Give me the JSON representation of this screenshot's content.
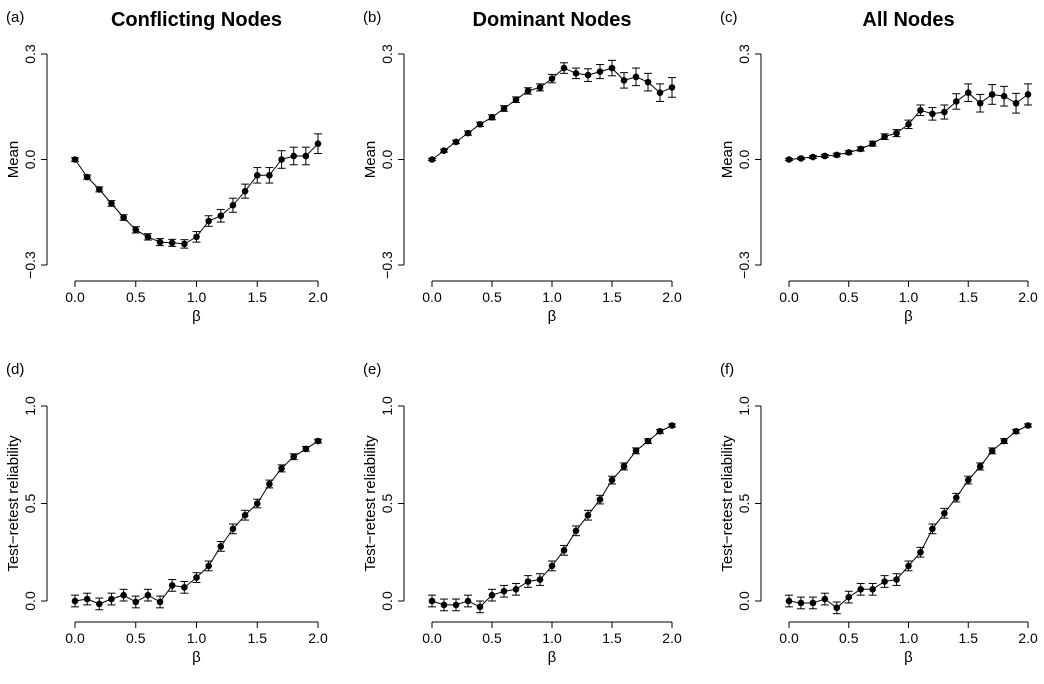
{
  "chart_data": [
    {
      "type": "line",
      "tag": "(a)",
      "title": "Conflicting Nodes",
      "xlabel": "β",
      "ylabel": "Mean",
      "xlim": [
        0,
        2
      ],
      "ylim": [
        -0.3,
        0.3
      ],
      "xticks": [
        "0.0",
        "0.5",
        "1.0",
        "1.5",
        "2.0"
      ],
      "yticks": [
        "−0.3",
        "0.0",
        "0.3"
      ],
      "x": [
        0.0,
        0.1,
        0.2,
        0.3,
        0.4,
        0.5,
        0.6,
        0.7,
        0.8,
        0.9,
        1.0,
        1.1,
        1.2,
        1.3,
        1.4,
        1.5,
        1.6,
        1.7,
        1.8,
        1.9,
        2.0
      ],
      "y": [
        0.0,
        -0.05,
        -0.085,
        -0.125,
        -0.165,
        -0.2,
        -0.22,
        -0.235,
        -0.237,
        -0.24,
        -0.22,
        -0.175,
        -0.16,
        -0.13,
        -0.09,
        -0.045,
        -0.045,
        0.0,
        0.01,
        0.01,
        0.045
      ],
      "err": [
        0.005,
        0.006,
        0.007,
        0.008,
        0.008,
        0.009,
        0.009,
        0.01,
        0.01,
        0.012,
        0.015,
        0.015,
        0.018,
        0.02,
        0.02,
        0.022,
        0.022,
        0.025,
        0.025,
        0.025,
        0.028
      ]
    },
    {
      "type": "line",
      "tag": "(b)",
      "title": "Dominant Nodes",
      "xlabel": "β",
      "ylabel": "Mean",
      "xlim": [
        0,
        2
      ],
      "ylim": [
        -0.3,
        0.3
      ],
      "xticks": [
        "0.0",
        "0.5",
        "1.0",
        "1.5",
        "2.0"
      ],
      "yticks": [
        "−0.3",
        "0.0",
        "0.3"
      ],
      "x": [
        0.0,
        0.1,
        0.2,
        0.3,
        0.4,
        0.5,
        0.6,
        0.7,
        0.8,
        0.9,
        1.0,
        1.1,
        1.2,
        1.3,
        1.4,
        1.5,
        1.6,
        1.7,
        1.8,
        1.9,
        2.0
      ],
      "y": [
        0.0,
        0.025,
        0.05,
        0.075,
        0.1,
        0.12,
        0.145,
        0.17,
        0.195,
        0.205,
        0.23,
        0.26,
        0.245,
        0.24,
        0.25,
        0.26,
        0.225,
        0.235,
        0.22,
        0.19,
        0.205
      ],
      "err": [
        0.003,
        0.004,
        0.005,
        0.006,
        0.006,
        0.007,
        0.008,
        0.008,
        0.009,
        0.01,
        0.012,
        0.015,
        0.015,
        0.018,
        0.02,
        0.022,
        0.022,
        0.025,
        0.025,
        0.025,
        0.028
      ]
    },
    {
      "type": "line",
      "tag": "(c)",
      "title": "All Nodes",
      "xlabel": "β",
      "ylabel": "Mean",
      "xlim": [
        0,
        2
      ],
      "ylim": [
        -0.3,
        0.3
      ],
      "xticks": [
        "0.0",
        "0.5",
        "1.0",
        "1.5",
        "2.0"
      ],
      "yticks": [
        "−0.3",
        "0.0",
        "0.3"
      ],
      "x": [
        0.0,
        0.1,
        0.2,
        0.3,
        0.4,
        0.5,
        0.6,
        0.7,
        0.8,
        0.9,
        1.0,
        1.1,
        1.2,
        1.3,
        1.4,
        1.5,
        1.6,
        1.7,
        1.8,
        1.9,
        2.0
      ],
      "y": [
        0.0,
        0.003,
        0.007,
        0.01,
        0.013,
        0.02,
        0.03,
        0.045,
        0.065,
        0.075,
        0.1,
        0.14,
        0.13,
        0.135,
        0.165,
        0.19,
        0.16,
        0.185,
        0.18,
        0.16,
        0.185
      ],
      "err": [
        0.003,
        0.003,
        0.004,
        0.004,
        0.005,
        0.005,
        0.006,
        0.007,
        0.008,
        0.01,
        0.012,
        0.015,
        0.018,
        0.02,
        0.022,
        0.025,
        0.025,
        0.028,
        0.028,
        0.028,
        0.03
      ]
    },
    {
      "type": "line",
      "tag": "(d)",
      "title": "",
      "xlabel": "β",
      "ylabel": "Test−retest reliability",
      "xlim": [
        0,
        2
      ],
      "ylim": [
        0,
        1
      ],
      "xticks": [
        "0.0",
        "0.5",
        "1.0",
        "1.5",
        "2.0"
      ],
      "yticks": [
        "0.0",
        "0.5",
        "1.0"
      ],
      "x": [
        0.0,
        0.1,
        0.2,
        0.3,
        0.4,
        0.5,
        0.6,
        0.7,
        0.8,
        0.9,
        1.0,
        1.1,
        1.2,
        1.3,
        1.4,
        1.5,
        1.6,
        1.7,
        1.8,
        1.9,
        2.0
      ],
      "y": [
        0.0,
        0.01,
        -0.015,
        0.01,
        0.03,
        -0.005,
        0.03,
        -0.005,
        0.08,
        0.07,
        0.12,
        0.18,
        0.28,
        0.37,
        0.44,
        0.5,
        0.6,
        0.68,
        0.74,
        0.78,
        0.82
      ],
      "err": [
        0.03,
        0.03,
        0.03,
        0.03,
        0.03,
        0.03,
        0.03,
        0.03,
        0.03,
        0.03,
        0.025,
        0.025,
        0.025,
        0.025,
        0.025,
        0.022,
        0.02,
        0.018,
        0.015,
        0.012,
        0.01
      ]
    },
    {
      "type": "line",
      "tag": "(e)",
      "title": "",
      "xlabel": "β",
      "ylabel": "Test−retest reliability",
      "xlim": [
        0,
        2
      ],
      "ylim": [
        0,
        1
      ],
      "xticks": [
        "0.0",
        "0.5",
        "1.0",
        "1.5",
        "2.0"
      ],
      "yticks": [
        "0.0",
        "0.5",
        "1.0"
      ],
      "x": [
        0.0,
        0.1,
        0.2,
        0.3,
        0.4,
        0.5,
        0.6,
        0.7,
        0.8,
        0.9,
        1.0,
        1.1,
        1.2,
        1.3,
        1.4,
        1.5,
        1.6,
        1.7,
        1.8,
        1.9,
        2.0
      ],
      "y": [
        0.0,
        -0.02,
        -0.02,
        0.0,
        -0.03,
        0.03,
        0.05,
        0.06,
        0.1,
        0.11,
        0.18,
        0.26,
        0.36,
        0.44,
        0.52,
        0.62,
        0.69,
        0.77,
        0.82,
        0.87,
        0.9
      ],
      "err": [
        0.03,
        0.03,
        0.03,
        0.03,
        0.03,
        0.03,
        0.03,
        0.03,
        0.03,
        0.03,
        0.025,
        0.025,
        0.025,
        0.025,
        0.022,
        0.02,
        0.018,
        0.015,
        0.012,
        0.01,
        0.008
      ]
    },
    {
      "type": "line",
      "tag": "(f)",
      "title": "",
      "xlabel": "β",
      "ylabel": "Test−retest reliability",
      "xlim": [
        0,
        2
      ],
      "ylim": [
        0,
        1
      ],
      "xticks": [
        "0.0",
        "0.5",
        "1.0",
        "1.5",
        "2.0"
      ],
      "yticks": [
        "0.0",
        "0.5",
        "1.0"
      ],
      "x": [
        0.0,
        0.1,
        0.2,
        0.3,
        0.4,
        0.5,
        0.6,
        0.7,
        0.8,
        0.9,
        1.0,
        1.1,
        1.2,
        1.3,
        1.4,
        1.5,
        1.6,
        1.7,
        1.8,
        1.9,
        2.0
      ],
      "y": [
        0.0,
        -0.01,
        -0.01,
        0.01,
        -0.035,
        0.02,
        0.06,
        0.06,
        0.1,
        0.11,
        0.18,
        0.25,
        0.37,
        0.45,
        0.53,
        0.62,
        0.69,
        0.77,
        0.82,
        0.87,
        0.9
      ],
      "err": [
        0.03,
        0.03,
        0.03,
        0.03,
        0.03,
        0.03,
        0.03,
        0.03,
        0.03,
        0.03,
        0.025,
        0.025,
        0.025,
        0.025,
        0.022,
        0.02,
        0.018,
        0.015,
        0.012,
        0.01,
        0.008
      ]
    }
  ]
}
